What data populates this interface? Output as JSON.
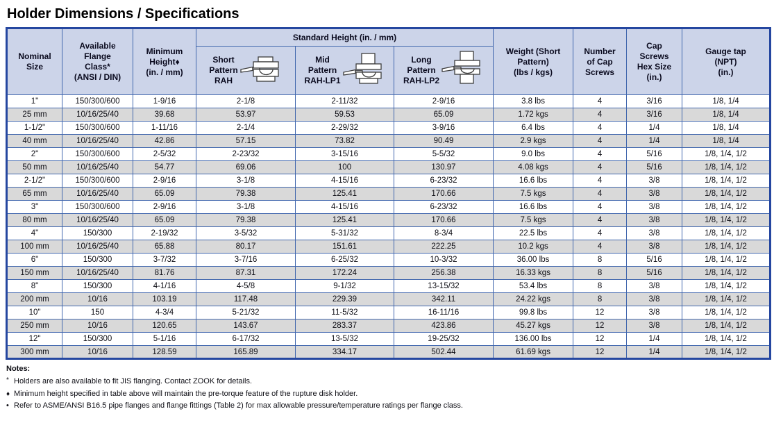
{
  "page": {
    "title": "Holder Dimensions / Specifications"
  },
  "table": {
    "group_header": "Standard Height (in. / mm)",
    "headers": {
      "nominal_size": "Nominal\nSize",
      "flange_class": "Available\nFlange\nClass*\n(ANSI / DIN)",
      "min_height": "Minimum\nHeight♦\n(in. / mm)",
      "short_pattern": "Short\nPattern\nRAH",
      "mid_pattern": "Mid\nPattern\nRAH-LP1",
      "long_pattern": "Long\nPattern\nRAH-LP2",
      "weight": "Weight (Short\nPattern)\n(lbs / kgs)",
      "cap_screws_count": "Number\nof Cap\nScrews",
      "cap_screws_hex": "Cap\nScrews\nHex Size\n(in.)",
      "gauge_tap": "Gauge tap\n(NPT)\n(in.)"
    },
    "icons": {
      "short": "short-pattern-holder-icon",
      "mid": "mid-pattern-holder-icon",
      "long": "long-pattern-holder-icon"
    },
    "rows": [
      [
        "1\"",
        "150/300/600",
        "1-9/16",
        "2-1/8",
        "2-11/32",
        "2-9/16",
        "3.8 lbs",
        "4",
        "3/16",
        "1/8, 1/4"
      ],
      [
        "25 mm",
        "10/16/25/40",
        "39.68",
        "53.97",
        "59.53",
        "65.09",
        "1.72 kgs",
        "4",
        "3/16",
        "1/8, 1/4"
      ],
      [
        "1-1/2\"",
        "150/300/600",
        "1-11/16",
        "2-1/4",
        "2-29/32",
        "3-9/16",
        "6.4 lbs",
        "4",
        "1/4",
        "1/8, 1/4"
      ],
      [
        "40 mm",
        "10/16/25/40",
        "42.86",
        "57.15",
        "73.82",
        "90.49",
        "2.9 kgs",
        "4",
        "1/4",
        "1/8, 1/4"
      ],
      [
        "2\"",
        "150/300/600",
        "2-5/32",
        "2-23/32",
        "3-15/16",
        "5-5/32",
        "9.0 lbs",
        "4",
        "5/16",
        "1/8, 1/4, 1/2"
      ],
      [
        "50 mm",
        "10/16/25/40",
        "54.77",
        "69.06",
        "100",
        "130.97",
        "4.08 kgs",
        "4",
        "5/16",
        "1/8, 1/4, 1/2"
      ],
      [
        "2-1/2\"",
        "150/300/600",
        "2-9/16",
        "3-1/8",
        "4-15/16",
        "6-23/32",
        "16.6 lbs",
        "4",
        "3/8",
        "1/8, 1/4, 1/2"
      ],
      [
        "65 mm",
        "10/16/25/40",
        "65.09",
        "79.38",
        "125.41",
        "170.66",
        "7.5 kgs",
        "4",
        "3/8",
        "1/8, 1/4, 1/2"
      ],
      [
        "3\"",
        "150/300/600",
        "2-9/16",
        "3-1/8",
        "4-15/16",
        "6-23/32",
        "16.6 lbs",
        "4",
        "3/8",
        "1/8, 1/4, 1/2"
      ],
      [
        "80 mm",
        "10/16/25/40",
        "65.09",
        "79.38",
        "125.41",
        "170.66",
        "7.5 kgs",
        "4",
        "3/8",
        "1/8, 1/4, 1/2"
      ],
      [
        "4\"",
        "150/300",
        "2-19/32",
        "3-5/32",
        "5-31/32",
        "8-3/4",
        "22.5 lbs",
        "4",
        "3/8",
        "1/8, 1/4, 1/2"
      ],
      [
        "100 mm",
        "10/16/25/40",
        "65.88",
        "80.17",
        "151.61",
        "222.25",
        "10.2 kgs",
        "4",
        "3/8",
        "1/8, 1/4, 1/2"
      ],
      [
        "6\"",
        "150/300",
        "3-7/32",
        "3-7/16",
        "6-25/32",
        "10-3/32",
        "36.00 lbs",
        "8",
        "5/16",
        "1/8, 1/4, 1/2"
      ],
      [
        "150 mm",
        "10/16/25/40",
        "81.76",
        "87.31",
        "172.24",
        "256.38",
        "16.33 kgs",
        "8",
        "5/16",
        "1/8, 1/4, 1/2"
      ],
      [
        "8\"",
        "150/300",
        "4-1/16",
        "4-5/8",
        "9-1/32",
        "13-15/32",
        "53.4 lbs",
        "8",
        "3/8",
        "1/8, 1/4, 1/2"
      ],
      [
        "200 mm",
        "10/16",
        "103.19",
        "117.48",
        "229.39",
        "342.11",
        "24.22 kgs",
        "8",
        "3/8",
        "1/8, 1/4, 1/2"
      ],
      [
        "10\"",
        "150",
        "4-3/4",
        "5-21/32",
        "11-5/32",
        "16-11/16",
        "99.8 lbs",
        "12",
        "3/8",
        "1/8, 1/4, 1/2"
      ],
      [
        "250 mm",
        "10/16",
        "120.65",
        "143.67",
        "283.37",
        "423.86",
        "45.27 kgs",
        "12",
        "3/8",
        "1/8, 1/4, 1/2"
      ],
      [
        "12\"",
        "150/300",
        "5-1/16",
        "6-17/32",
        "13-5/32",
        "19-25/32",
        "136.00 lbs",
        "12",
        "1/4",
        "1/8, 1/4, 1/2"
      ],
      [
        "300 mm",
        "10/16",
        "128.59",
        "165.89",
        "334.17",
        "502.44",
        "61.69 kgs",
        "12",
        "1/4",
        "1/8, 1/4, 1/2"
      ]
    ]
  },
  "notes": {
    "heading": "Notes:",
    "items": [
      {
        "marker": "*",
        "text": "Holders are also available to fit JIS flanging. Contact ZOOK for details."
      },
      {
        "marker": "♦",
        "text": "Minimum height specified in table above will maintain the pre-torque feature of the rupture disk holder."
      },
      {
        "marker": "•",
        "text": "Refer to ASME/ANSI B16.5 pipe flanges and flange fittings (Table 2) for max allowable pressure/temperature ratings per flange class."
      }
    ]
  },
  "colors": {
    "header_bg": "#ccd4e9",
    "border_blue": "#4066ad",
    "outer_border_blue": "#2547a0",
    "stripe_gray": "#d9d9d9",
    "text": "#0d0d14"
  }
}
